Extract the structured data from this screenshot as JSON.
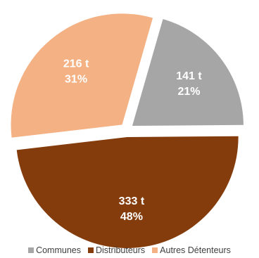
{
  "chart_data": {
    "type": "pie",
    "title": "",
    "slices": [
      {
        "name": "Communes",
        "value": 141,
        "value_label": "141 t",
        "percent": 21,
        "percent_label": "21%",
        "color": "#a6a6a6",
        "exploded": true
      },
      {
        "name": "Distributeurs",
        "value": 333,
        "value_label": "333 t",
        "percent": 48,
        "percent_label": "48%",
        "color": "#843c0c",
        "exploded": true
      },
      {
        "name": "Autres Détenteurs",
        "value": 216,
        "value_label": "216 t",
        "percent": 31,
        "percent_label": "31%",
        "color": "#f4b183",
        "exploded": true
      }
    ],
    "start_angle_deg": 16,
    "direction": "clockwise",
    "legend": {
      "position": "bottom",
      "entries": [
        "Communes",
        "Distributeurs",
        "Autres Détenteurs"
      ]
    }
  }
}
